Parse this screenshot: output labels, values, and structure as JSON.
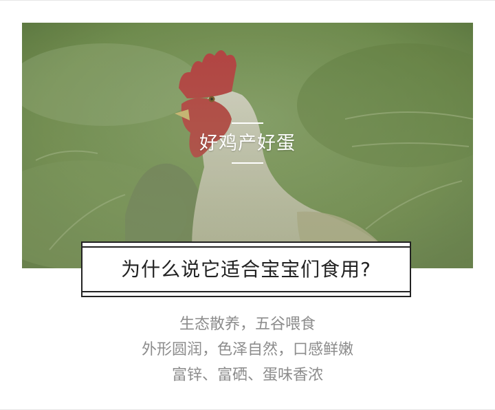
{
  "hero": {
    "image_icon": "rooster-photo-icon",
    "title": "好鸡产好蛋"
  },
  "headline": {
    "text": "为什么说它适合宝宝们食用?"
  },
  "description": {
    "lines": [
      "生态散养，五谷喂食",
      "外形圆润，色泽自然，口感鲜嫩",
      "富锌、富硒、蛋味香浓"
    ]
  },
  "colors": {
    "headline_text": "#222222",
    "description_text": "#8c8c8c",
    "hero_title_text": "#ffffff"
  }
}
